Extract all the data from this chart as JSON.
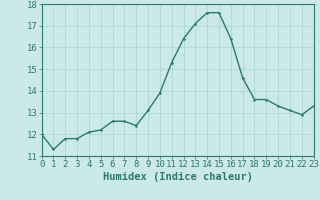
{
  "x": [
    0,
    1,
    2,
    3,
    4,
    5,
    6,
    7,
    8,
    9,
    10,
    11,
    12,
    13,
    14,
    15,
    16,
    17,
    18,
    19,
    20,
    21,
    22,
    23
  ],
  "y": [
    12.0,
    11.3,
    11.8,
    11.8,
    12.1,
    12.2,
    12.6,
    12.6,
    12.4,
    13.1,
    13.9,
    15.3,
    16.4,
    17.1,
    17.6,
    17.6,
    16.4,
    14.6,
    13.6,
    13.6,
    13.3,
    13.1,
    12.9,
    13.3
  ],
  "xlabel": "Humidex (Indice chaleur)",
  "xlim": [
    0,
    23
  ],
  "ylim": [
    11.0,
    18.0
  ],
  "yticks": [
    11,
    12,
    13,
    14,
    15,
    16,
    17,
    18
  ],
  "xticks": [
    0,
    1,
    2,
    3,
    4,
    5,
    6,
    7,
    8,
    9,
    10,
    11,
    12,
    13,
    14,
    15,
    16,
    17,
    18,
    19,
    20,
    21,
    22,
    23
  ],
  "line_color": "#2a7a6e",
  "marker_color": "#2a7a6e",
  "bg_color": "#cce9e9",
  "grid_color": "#a8d4d4",
  "spine_color": "#2a7a6e",
  "tick_label_color": "#2a7a6e",
  "xlabel_color": "#2a7a6e",
  "xlabel_fontsize": 7.5,
  "tick_fontsize": 6.5,
  "line_width": 1.0,
  "marker_size": 2.5
}
